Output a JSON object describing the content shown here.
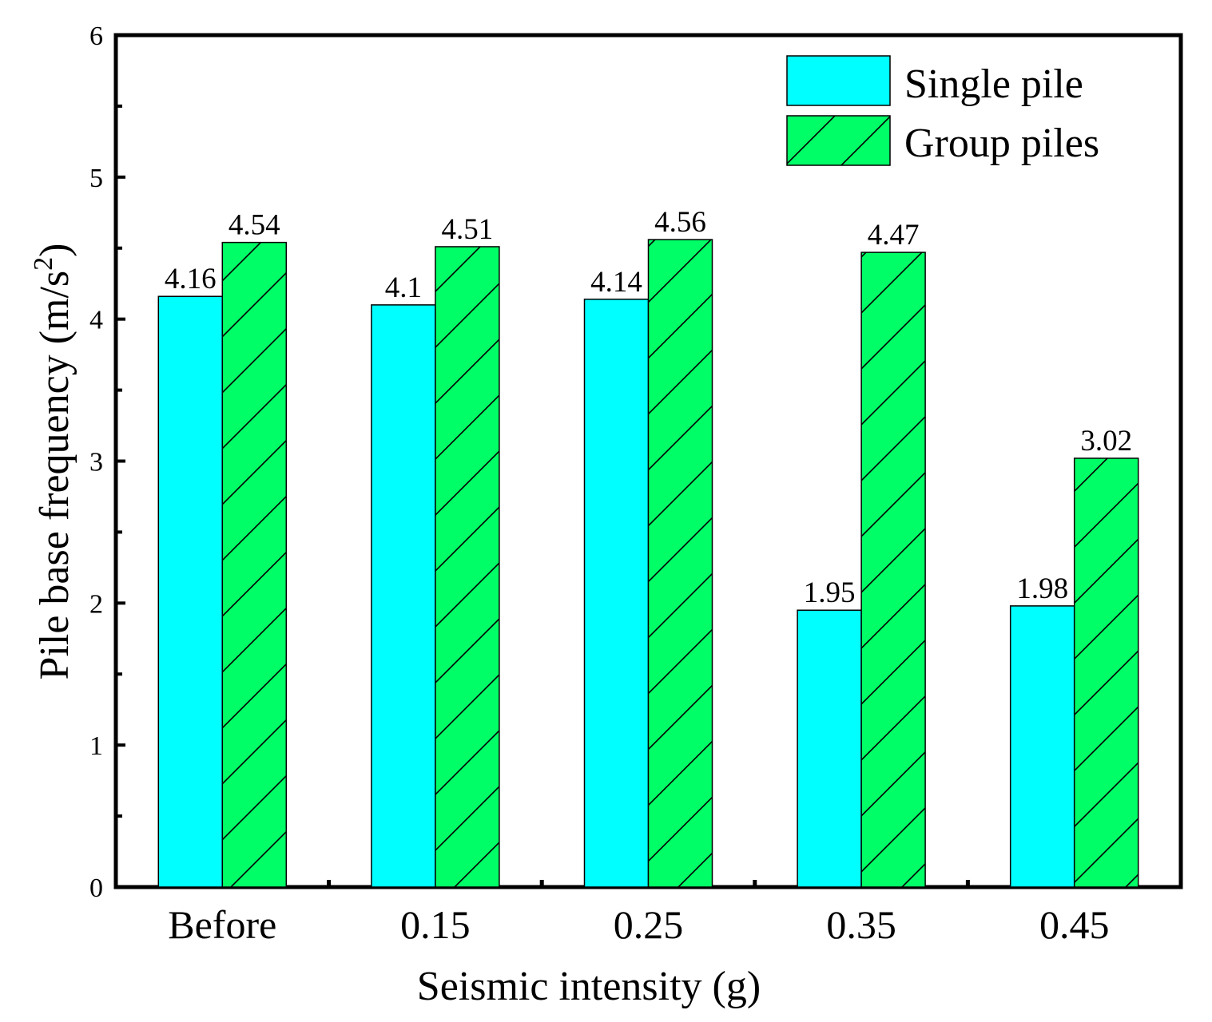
{
  "chart_data": {
    "type": "bar",
    "title": "",
    "xlabel": "Seismic intensity (g)",
    "ylabel": "Pile base frequency (m/s",
    "ylabel_superscript": "2",
    "ylabel_suffix": ")",
    "ylim": [
      0,
      6
    ],
    "yticks": [
      0,
      1,
      2,
      3,
      4,
      5,
      6
    ],
    "ytick_labels": [
      "0",
      "1",
      "2",
      "3",
      "4",
      "5",
      "6"
    ],
    "categories": [
      "Before",
      "0.15",
      "0.25",
      "0.35",
      "0.45"
    ],
    "series": [
      {
        "name": "Single pile",
        "color": "#00FFFF",
        "pattern": "solid",
        "values": [
          4.16,
          4.1,
          4.14,
          1.95,
          1.98
        ],
        "labels": [
          "4.16",
          "4.1",
          "4.14",
          "1.95",
          "1.98"
        ]
      },
      {
        "name": "Group piles",
        "color": "#00FF66",
        "pattern": "diagonal-hatch",
        "values": [
          4.54,
          4.51,
          4.56,
          4.47,
          3.02
        ],
        "labels": [
          "4.54",
          "4.51",
          "4.56",
          "4.47",
          "3.02"
        ]
      }
    ],
    "legend_position": "top-right",
    "grid": false
  }
}
